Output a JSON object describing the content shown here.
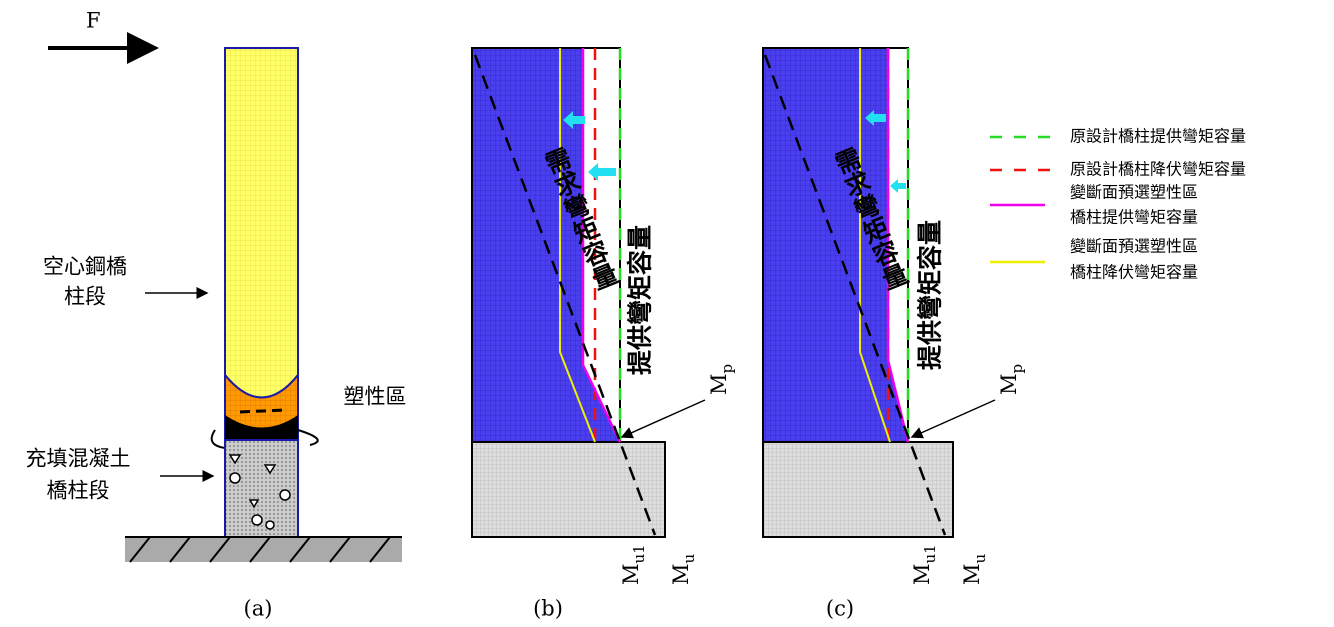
{
  "panel_a": {
    "force_label": "F",
    "hollow_label": [
      "空心鋼橋",
      "柱段"
    ],
    "plastic_label": "塑性區",
    "filled_label": [
      "充填混凝土",
      "橋柱段"
    ],
    "caption": "(a)"
  },
  "panel_b": {
    "demand_label": "需求彎矩容量",
    "capacity_label": "提供彎矩容量",
    "mp": {
      "base": "M",
      "sub": "p"
    },
    "mu1": {
      "base": "M",
      "sub": "u1"
    },
    "mu": {
      "base": "M",
      "sub": "u"
    },
    "caption": "(b)"
  },
  "panel_c": {
    "demand_label": "需求彎矩容量",
    "capacity_label": "提供彎矩容量",
    "mp": {
      "base": "M",
      "sub": "p"
    },
    "mu1": {
      "base": "M",
      "sub": "u1"
    },
    "mu": {
      "base": "M",
      "sub": "u"
    },
    "caption": "(c)"
  },
  "legend": [
    {
      "label": [
        "原設計橋柱提供彎矩容量"
      ]
    },
    {
      "label": [
        "原設計橋柱降伏彎矩容量"
      ]
    },
    {
      "label": [
        "變斷面預選塑性區",
        "橋柱提供彎矩容量"
      ]
    },
    {
      "label": [
        "變斷面預選塑性區",
        "橋柱降伏彎矩容量"
      ]
    }
  ]
}
